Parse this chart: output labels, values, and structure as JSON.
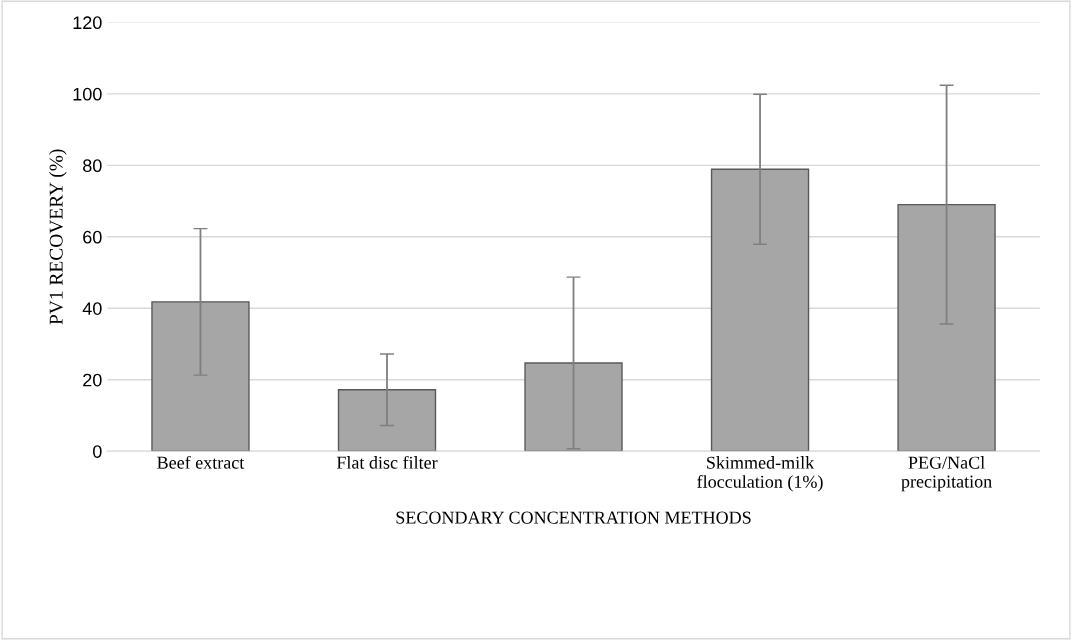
{
  "chart_data": {
    "type": "bar",
    "xlabel": "SECONDARY CONCENTRATION METHODS",
    "ylabel": "PV1 RECOVERY (%)",
    "categories": [
      "Beef extract",
      "Flat disc filter",
      null,
      "Skimmed-milk flocculation (1%)",
      "PEG/NaCl precipitation"
    ],
    "values": [
      41.8,
      17.2,
      24.7,
      78.9,
      69.0
    ],
    "errors": [
      20.5,
      10,
      24,
      21,
      33.4
    ],
    "color": "#a6a6a6",
    "ylim": [
      0,
      120
    ],
    "yticks": [
      0,
      20,
      40,
      60,
      80,
      100,
      120
    ],
    "grid": "y"
  }
}
